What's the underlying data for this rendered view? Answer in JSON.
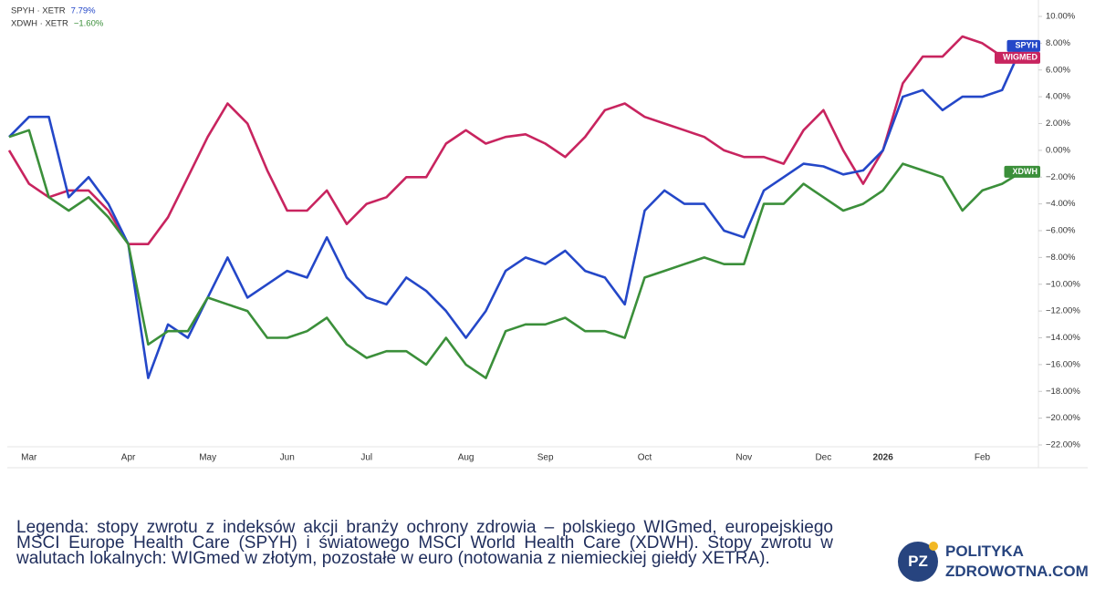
{
  "chart_data": {
    "type": "line",
    "header_legend": [
      {
        "label": "SPYH · XETR",
        "change": "7.79%",
        "color": "#2447c8"
      },
      {
        "label": "XDWH · XETR",
        "change": "−1.60%",
        "color": "#3b8f3a"
      }
    ],
    "categories": [
      null,
      "Mar",
      null,
      null,
      null,
      null,
      "Apr",
      null,
      null,
      null,
      "May",
      null,
      null,
      null,
      "Jun",
      null,
      null,
      null,
      "Jul",
      null,
      null,
      null,
      null,
      "Aug",
      null,
      null,
      null,
      "Sep",
      null,
      null,
      null,
      null,
      "Oct",
      null,
      null,
      null,
      null,
      "Nov",
      null,
      null,
      null,
      "Dec",
      null,
      null,
      "2026",
      null,
      null,
      null,
      null,
      "Feb",
      null,
      null
    ],
    "series": [
      {
        "name": "WIGMED",
        "color": "#c8245f",
        "values": [
          0,
          -2.5,
          -3.5,
          -3,
          -3,
          -4.5,
          -7,
          -7,
          -5,
          -2,
          1,
          3.5,
          2,
          -1.5,
          -4.5,
          -4.5,
          -3,
          -5.5,
          -4,
          -3.5,
          -2,
          -2,
          0.5,
          1.5,
          0.5,
          1,
          1.2,
          0.5,
          -0.5,
          1,
          3,
          3.5,
          2.5,
          2,
          1.5,
          1,
          0,
          -0.5,
          -0.5,
          -1,
          1.5,
          3,
          0,
          -2.5,
          0,
          5,
          7,
          7,
          8.5,
          8,
          7,
          7.5
        ]
      },
      {
        "name": "SPYH",
        "color": "#2447c8",
        "values": [
          1,
          2.5,
          2.5,
          -3.5,
          -2,
          -4,
          -7,
          -17,
          -13,
          -14,
          -11,
          -8,
          -11,
          -10,
          -9,
          -9.5,
          -6.5,
          -9.5,
          -11,
          -11.5,
          -9.5,
          -10.5,
          -12,
          -14,
          -12,
          -9,
          -8,
          -8.5,
          -7.5,
          -9,
          -9.5,
          -11.5,
          -4.5,
          -3,
          -4,
          -4,
          -6,
          -6.5,
          -3,
          -2,
          -1,
          -1.2,
          -1.8,
          -1.5,
          0,
          4,
          4.5,
          3,
          4,
          4,
          4.5,
          7.8
        ]
      },
      {
        "name": "XDWH",
        "color": "#3b8f3a",
        "values": [
          1,
          1.5,
          -3.5,
          -4.5,
          -3.5,
          -5,
          -7,
          -14.5,
          -13.5,
          -13.5,
          -11,
          -11.5,
          -12,
          -14,
          -14,
          -13.5,
          -12.5,
          -14.5,
          -15.5,
          -15,
          -15,
          -16,
          -14,
          -16,
          -17,
          -13.5,
          -13,
          -13,
          -12.5,
          -13.5,
          -13.5,
          -14,
          -9.5,
          -9,
          -8.5,
          -8,
          -8.5,
          -8.5,
          -4,
          -4,
          -2.5,
          -3.5,
          -4.5,
          -4,
          -3,
          -1,
          -1.5,
          -2,
          -4.5,
          -3,
          -2.5,
          -1.6
        ]
      }
    ],
    "ylim": [
      -22,
      10
    ],
    "yticks": [
      {
        "value": 10,
        "label": "10.00%"
      },
      {
        "value": 8,
        "label": "8.00%"
      },
      {
        "value": 6,
        "label": "6.00%"
      },
      {
        "value": 4,
        "label": "4.00%"
      },
      {
        "value": 2,
        "label": "2.00%"
      },
      {
        "value": 0,
        "label": "0.00%"
      },
      {
        "value": -2,
        "label": "−2.00%"
      },
      {
        "value": -4,
        "label": "−4.00%"
      },
      {
        "value": -6,
        "label": "−6.00%"
      },
      {
        "value": -8,
        "label": "−8.00%"
      },
      {
        "value": -10,
        "label": "−10.00%"
      },
      {
        "value": -12,
        "label": "−12.00%"
      },
      {
        "value": -14,
        "label": "−14.00%"
      },
      {
        "value": -16,
        "label": "−16.00%"
      },
      {
        "value": -18,
        "label": "−18.00%"
      },
      {
        "value": -20,
        "label": "−20.00%"
      },
      {
        "value": -22,
        "label": "−22.00%"
      }
    ],
    "grid": false
  },
  "caption": "Legenda: stopy zwrotu z indeksów akcji branży ochrony zdrowia – polskiego WIGmed, europejskiego MSCI Europe Health Care (SPYH) i światowego MSCI World Health Care (XDWH). Stopy zwrotu w walutach lokalnych: WIGmed w złotym, pozostałe w euro (notowania z niemieckiej giełdy XETRA).",
  "logo": {
    "mark": "PZ",
    "line1": "POLITYKA",
    "line2": "ZDROWOTNA.COM"
  }
}
